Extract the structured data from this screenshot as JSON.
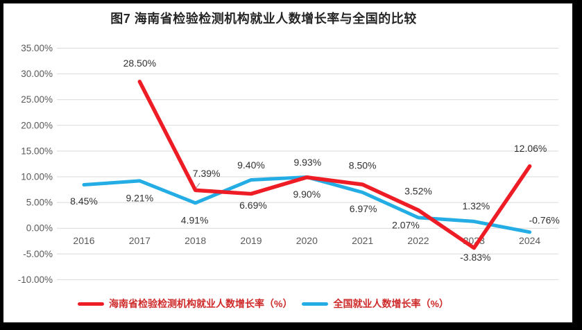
{
  "chart_data": {
    "type": "line",
    "title": "图7 海南省检验检测机构就业人数增长率与全国的比较",
    "categories": [
      "2016",
      "2017",
      "2018",
      "2019",
      "2020",
      "2021",
      "2022",
      "2023",
      "2024"
    ],
    "series": [
      {
        "name": "海南省检验检测机构就业人数增长率（%）",
        "color": "#ee1c25",
        "stroke_width": 5.5,
        "values": [
          null,
          28.5,
          7.39,
          6.69,
          9.9,
          8.5,
          3.52,
          -3.83,
          12.06
        ],
        "labels": [
          {
            "idx": 1,
            "text": "28.50%",
            "dx": 0,
            "dy": -26
          },
          {
            "idx": 2,
            "text": "7.39%",
            "dx": 16,
            "dy": -24
          },
          {
            "idx": 3,
            "text": "6.69%",
            "dx": 3,
            "dy": 17
          },
          {
            "idx": 4,
            "text": "9.90%",
            "dx": 0,
            "dy": 25
          },
          {
            "idx": 5,
            "text": "8.50%",
            "dx": 0,
            "dy": -27
          },
          {
            "idx": 6,
            "text": "3.52%",
            "dx": 0,
            "dy": -27
          },
          {
            "idx": 7,
            "text": "-3.83%",
            "dx": 2,
            "dy": 14
          },
          {
            "idx": 8,
            "text": "12.06%",
            "dx": 1,
            "dy": -25
          }
        ]
      },
      {
        "name": "全国就业人数增长率（%）",
        "color": "#24ade4",
        "stroke_width": 5,
        "values": [
          8.45,
          9.21,
          4.91,
          9.4,
          9.93,
          6.97,
          2.07,
          1.32,
          -0.76
        ],
        "labels": [
          {
            "idx": 0,
            "text": "8.45%",
            "dx": 0,
            "dy": 24
          },
          {
            "idx": 1,
            "text": "9.21%",
            "dx": 0,
            "dy": 25
          },
          {
            "idx": 2,
            "text": "4.91%",
            "dx": -1,
            "dy": 25
          },
          {
            "idx": 3,
            "text": "9.40%",
            "dx": 0,
            "dy": -21
          },
          {
            "idx": 4,
            "text": "9.93%",
            "dx": 1,
            "dy": -21
          },
          {
            "idx": 5,
            "text": "6.97%",
            "dx": 1,
            "dy": 24
          },
          {
            "idx": 6,
            "text": "2.07%",
            "dx": -18,
            "dy": 11
          },
          {
            "idx": 7,
            "text": "1.32%",
            "dx": 3,
            "dy": -22
          },
          {
            "idx": 8,
            "text": "-0.76%",
            "dx": 21,
            "dy": -17
          }
        ]
      }
    ],
    "ylim": [
      -10,
      35
    ],
    "yticks": [
      {
        "value": 35,
        "label": "35.00%"
      },
      {
        "value": 30,
        "label": "30.00%"
      },
      {
        "value": 25,
        "label": "25.00%"
      },
      {
        "value": 20,
        "label": "20.00%"
      },
      {
        "value": 15,
        "label": "15.00%"
      },
      {
        "value": 10,
        "label": "10.00%"
      },
      {
        "value": 5,
        "label": "5.00%"
      },
      {
        "value": 0,
        "label": "0.00%"
      },
      {
        "value": -5,
        "label": "-5.00%"
      },
      {
        "value": -10,
        "label": "-10.00%"
      }
    ],
    "grid": true,
    "legend_position": "bottom",
    "leader_line": {
      "x1": 288,
      "y1": 264,
      "x2": 282,
      "y2": 272
    },
    "colors": {
      "grid": "#d9d9d9",
      "axis_text": "#595959",
      "data_label_text": "#303030",
      "title_text": "#262626",
      "legend_text": "#cf2a2a",
      "leader": "#a6a6a6",
      "scan_border": "#000000"
    }
  }
}
